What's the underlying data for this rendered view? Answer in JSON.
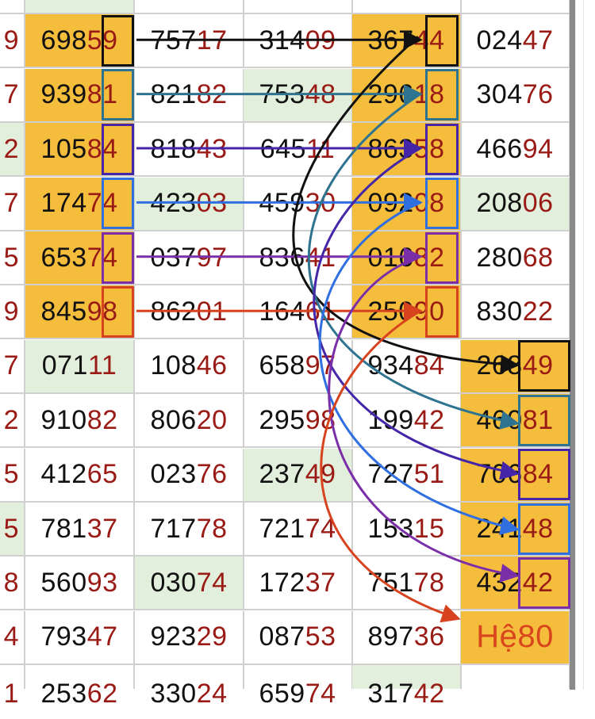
{
  "colors": {
    "highlight": "#f4bd3c",
    "green": "#e2efdc",
    "digit_red": "#9a1b15",
    "special": "#d9451c",
    "links": [
      "#111111",
      "#2e7390",
      "#4526a8",
      "#2f6fe0",
      "#7a2fa8",
      "#d8431f"
    ]
  },
  "rows": [
    {
      "cells": [
        "",
        "",
        "",
        "",
        "",
        ""
      ],
      "bg": [
        "",
        "g",
        "",
        "",
        "",
        ""
      ]
    },
    {
      "cells": [
        "9",
        "69859",
        "75717",
        "31409",
        "36744",
        "02447"
      ],
      "bg": [
        "",
        "o",
        "",
        "",
        "o",
        ""
      ]
    },
    {
      "cells": [
        "7",
        "93981",
        "82182",
        "75348",
        "29618",
        "30476"
      ],
      "bg": [
        "",
        "o",
        "",
        "g",
        "o",
        ""
      ]
    },
    {
      "cells": [
        "2",
        "10584",
        "81843",
        "64511",
        "86358",
        "46694"
      ],
      "bg": [
        "g",
        "o",
        "",
        "",
        "o",
        ""
      ]
    },
    {
      "cells": [
        "7",
        "17474",
        "42303",
        "45930",
        "09208",
        "20806"
      ],
      "bg": [
        "",
        "o",
        "g",
        "",
        "o",
        "g"
      ]
    },
    {
      "cells": [
        "5",
        "65374",
        "03797",
        "83641",
        "01682",
        "28068"
      ],
      "bg": [
        "",
        "o",
        "",
        "",
        "o",
        ""
      ]
    },
    {
      "cells": [
        "9",
        "84598",
        "86201",
        "16461",
        "25090",
        "83022"
      ],
      "bg": [
        "",
        "o",
        "",
        "",
        "o",
        ""
      ]
    },
    {
      "cells": [
        "7",
        "07111",
        "10846",
        "65897",
        "93484",
        "26849"
      ],
      "bg": [
        "",
        "g",
        "",
        "",
        "",
        "o"
      ]
    },
    {
      "cells": [
        "2",
        "91082",
        "80620",
        "29598",
        "19942",
        "46081"
      ],
      "bg": [
        "",
        "",
        "",
        "",
        "",
        "o"
      ]
    },
    {
      "cells": [
        "5",
        "41265",
        "02376",
        "23749",
        "72751",
        "70684"
      ],
      "bg": [
        "",
        "",
        "",
        "g",
        "",
        "o"
      ]
    },
    {
      "cells": [
        "5",
        "78137",
        "71778",
        "72174",
        "15315",
        "24148"
      ],
      "bg": [
        "g",
        "",
        "",
        "",
        "",
        "o"
      ]
    },
    {
      "cells": [
        "8",
        "56093",
        "03074",
        "17237",
        "75178",
        "43242"
      ],
      "bg": [
        "",
        "",
        "g",
        "",
        "",
        "o"
      ]
    },
    {
      "cells": [
        "4",
        "79347",
        "92329",
        "08753",
        "89736",
        "Hệ80"
      ],
      "bg": [
        "",
        "",
        "",
        "",
        "",
        "o"
      ]
    },
    {
      "cells": [
        "1",
        "25362",
        "33024",
        "65974",
        "31742",
        ""
      ],
      "bg": [
        "",
        "",
        "",
        "",
        "g",
        ""
      ]
    }
  ]
}
